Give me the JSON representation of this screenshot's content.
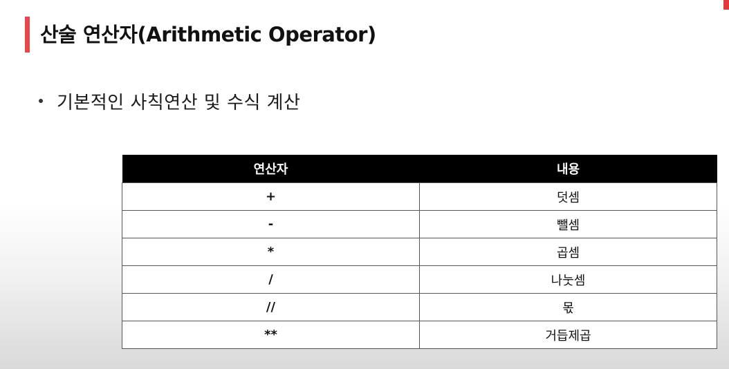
{
  "slide": {
    "title": "산술 연산자(Arithmetic Operator)",
    "bullet": "기본적인 사칙연산 및 수식 계산"
  },
  "table": {
    "headers": [
      "연산자",
      "내용"
    ],
    "rows": [
      {
        "operator": "+",
        "description": "덧셈"
      },
      {
        "operator": "-",
        "description": "뺄셈"
      },
      {
        "operator": "*",
        "description": "곱셈"
      },
      {
        "operator": "/",
        "description": "나눗셈"
      },
      {
        "operator": "//",
        "description": "몫"
      },
      {
        "operator": "**",
        "description": "거듭제곱"
      }
    ]
  },
  "colors": {
    "accent": "#e8464b",
    "header_bg": "#000000",
    "header_text": "#ffffff"
  }
}
